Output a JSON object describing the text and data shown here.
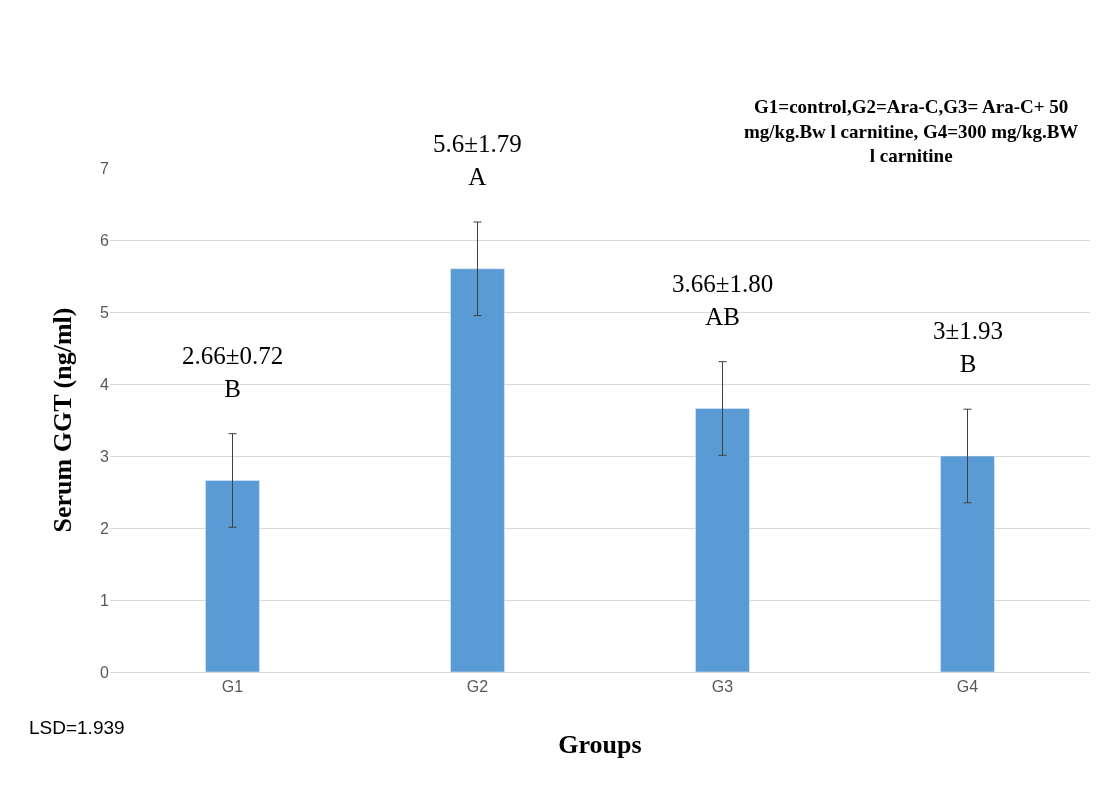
{
  "chart_data": {
    "type": "bar",
    "categories": [
      "G1",
      "G2",
      "G3",
      "G4"
    ],
    "values": [
      2.66,
      5.6,
      3.66,
      3
    ],
    "errors": [
      0.65,
      0.65,
      0.65,
      0.65
    ],
    "value_labels": [
      "2.66±0.72\nB",
      "5.6±1.79\nA",
      "3.66±1.80\nAB",
      "3±1.93\nB"
    ],
    "color": "#5b9bd5",
    "xlabel": "Groups",
    "ylabel": "Serum GGT (ng/ml)",
    "ylim": [
      0,
      7
    ],
    "yticks": [
      0,
      1,
      2,
      3,
      4,
      5,
      6,
      7
    ],
    "grid": "y",
    "legend": false,
    "annotations": [
      "G1=control,G2=Ara-C,G3= Ara-C+ 50\nmg/kg.Bw l carnitine, G4=300 mg/kg.BW\nl carnitine",
      "LSD=1.939"
    ]
  }
}
